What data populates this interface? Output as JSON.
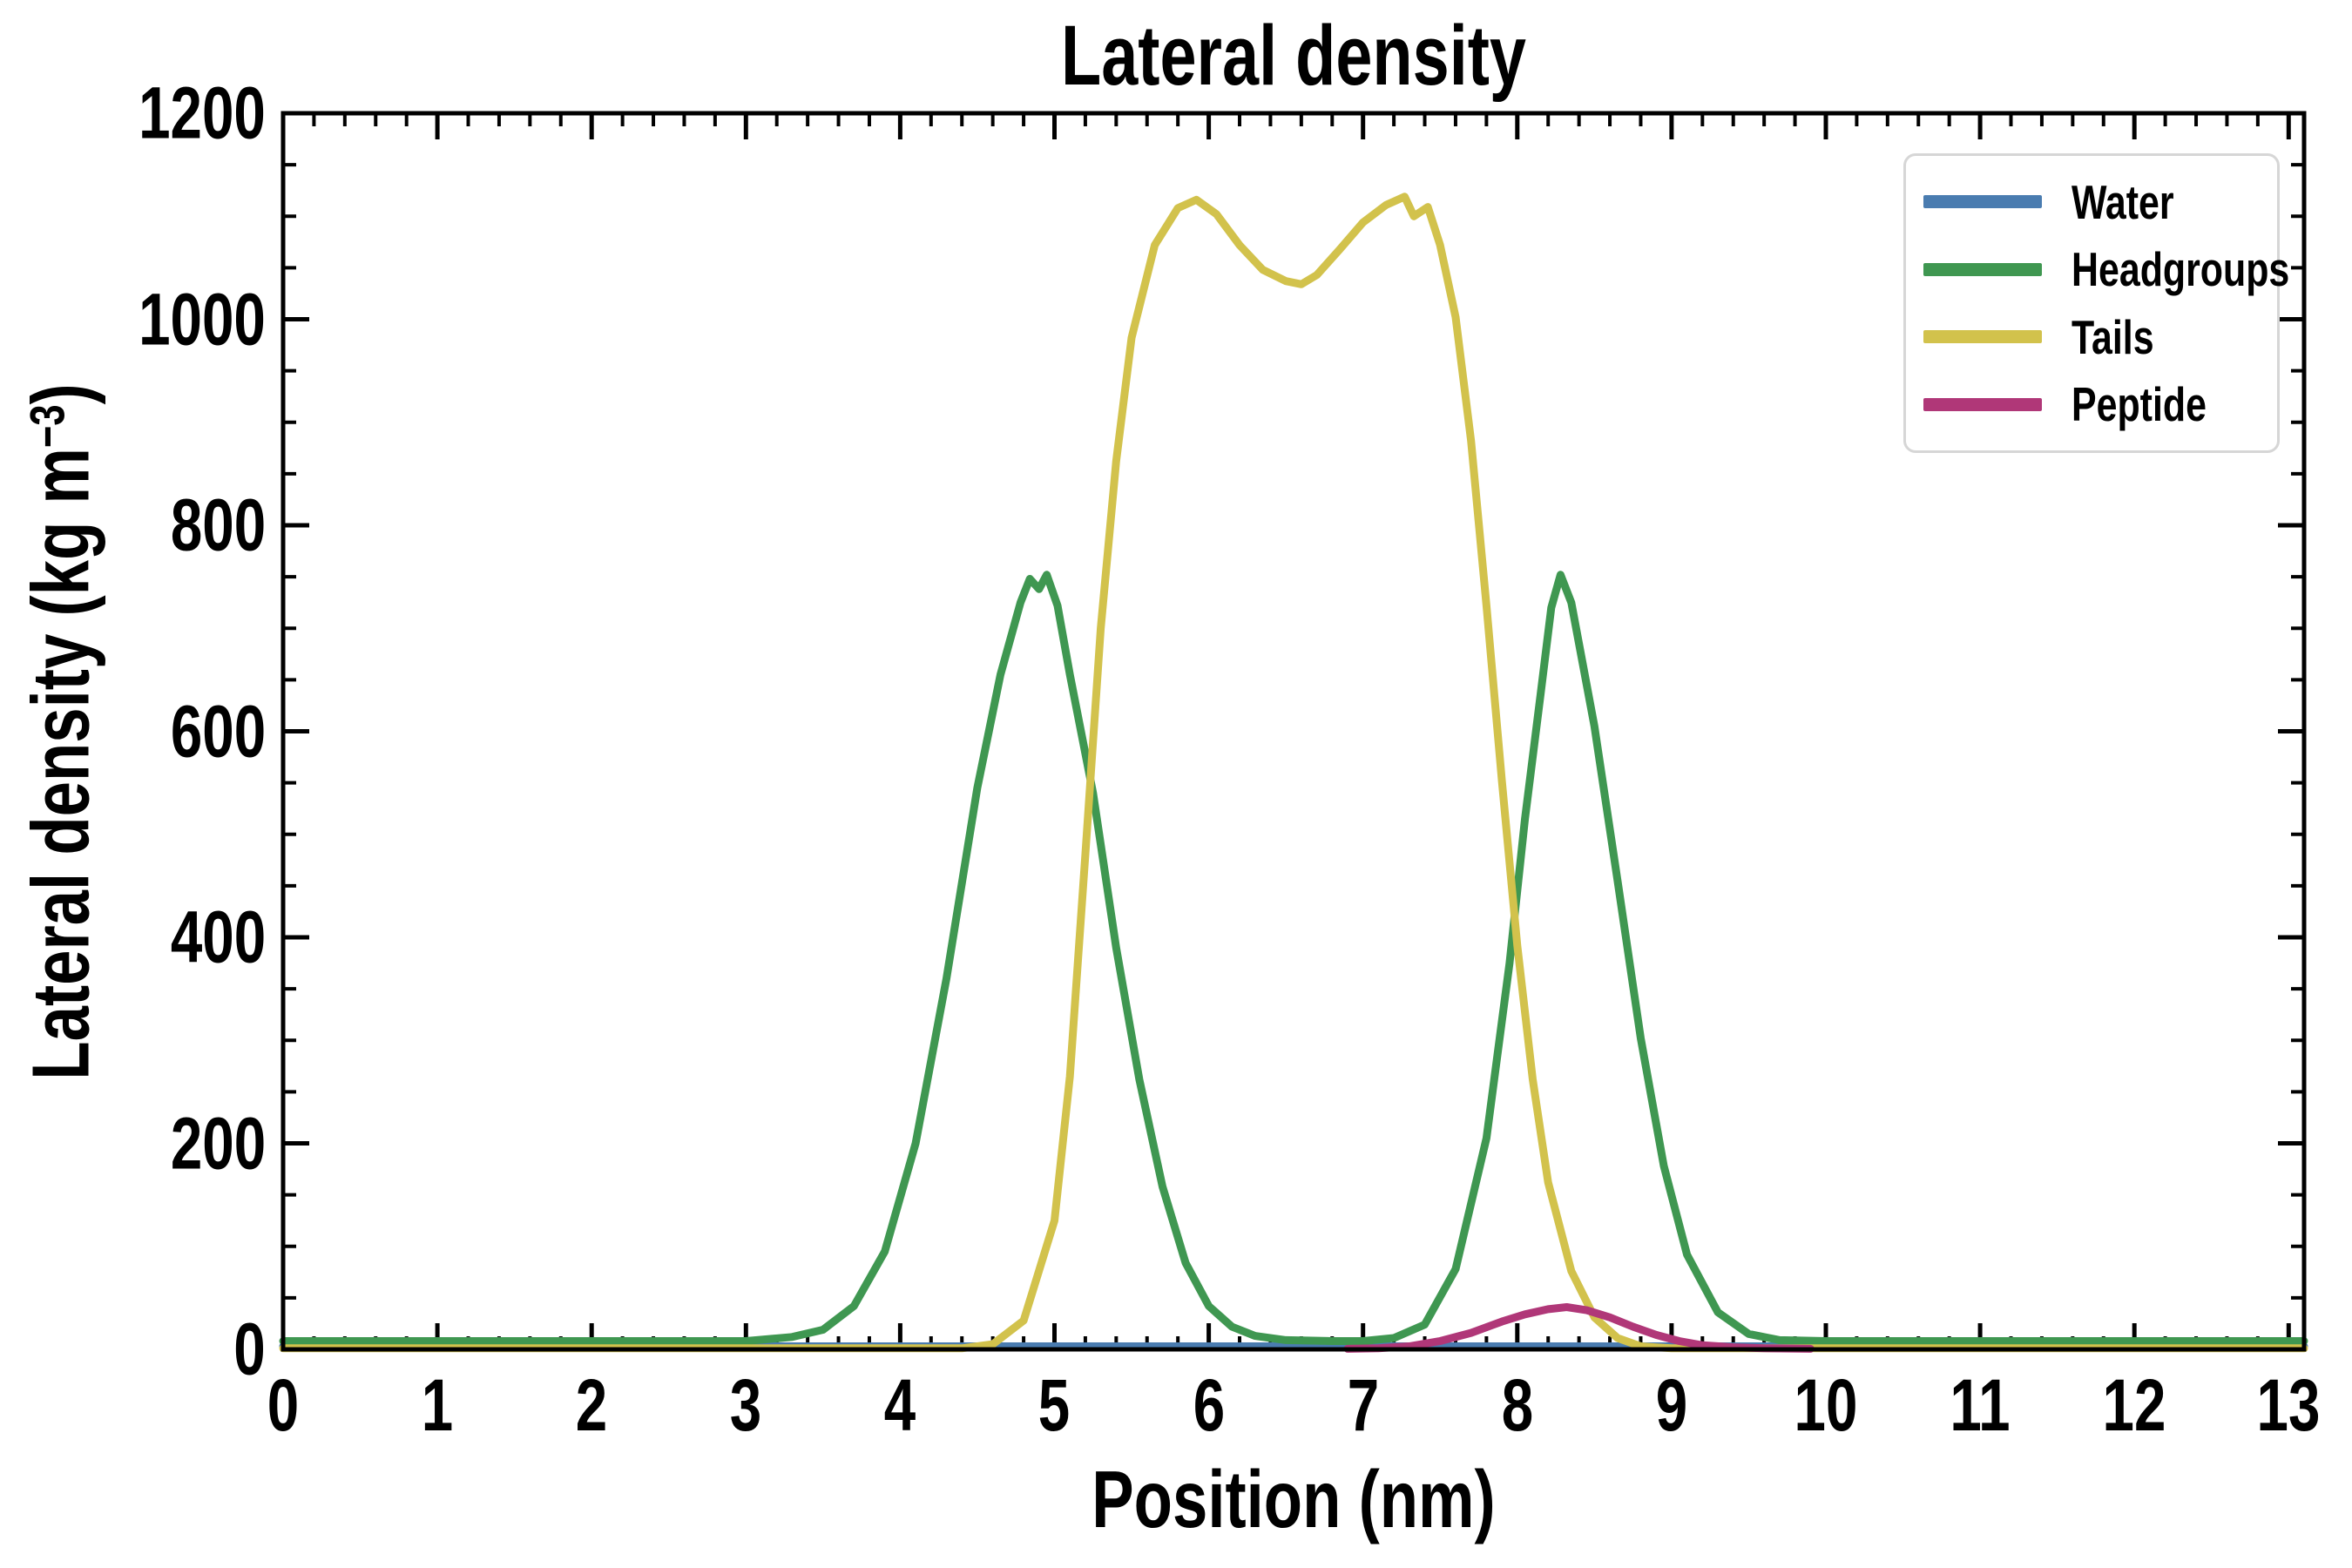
{
  "title": "Lateral density",
  "axes": {
    "xlabel": "Position (nm)",
    "ylabel_pre": "Lateral density (kg m",
    "ylabel_sup": "−3",
    "ylabel_post": ")",
    "xlim": [
      0,
      13.1
    ],
    "ylim": [
      0,
      1200
    ],
    "xticks": [
      0,
      1,
      2,
      3,
      4,
      5,
      6,
      7,
      8,
      9,
      10,
      11,
      12,
      13
    ],
    "yticks": [
      0,
      200,
      400,
      600,
      800,
      1000,
      1200
    ],
    "x_minor_step": 0.2,
    "y_minor_step": 50
  },
  "chart_data": {
    "type": "line",
    "title": "Lateral density",
    "xlabel": "Position (nm)",
    "ylabel": "Lateral density (kg m⁻³)",
    "xlim": [
      0,
      13.1
    ],
    "ylim": [
      0,
      1200
    ],
    "grid": false,
    "legend_position": "upper right",
    "series": [
      {
        "name": "Water",
        "color": "#4a7cb0",
        "peak_summary": "flat at ~0 kg m-3 across 0-13 nm",
        "points": [
          [
            0,
            3
          ],
          [
            13.1,
            3
          ]
        ]
      },
      {
        "name": "Headgroups",
        "color": "#3f9751",
        "peak_summary": "two peaks of ~750 kg m-3 at ~4.9 nm and ~8.3 nm",
        "points": [
          [
            0,
            8
          ],
          [
            3.0,
            8
          ],
          [
            3.3,
            12
          ],
          [
            3.5,
            19
          ],
          [
            3.7,
            42
          ],
          [
            3.9,
            95
          ],
          [
            4.1,
            200
          ],
          [
            4.3,
            360
          ],
          [
            4.5,
            545
          ],
          [
            4.65,
            655
          ],
          [
            4.78,
            725
          ],
          [
            4.84,
            748
          ],
          [
            4.9,
            738
          ],
          [
            4.95,
            752
          ],
          [
            5.02,
            722
          ],
          [
            5.1,
            655
          ],
          [
            5.25,
            540
          ],
          [
            5.4,
            390
          ],
          [
            5.55,
            262
          ],
          [
            5.7,
            158
          ],
          [
            5.85,
            84
          ],
          [
            6.0,
            42
          ],
          [
            6.15,
            22
          ],
          [
            6.3,
            13
          ],
          [
            6.5,
            9
          ],
          [
            6.8,
            8
          ],
          [
            7.0,
            8
          ],
          [
            7.2,
            11
          ],
          [
            7.4,
            24
          ],
          [
            7.6,
            78
          ],
          [
            7.8,
            205
          ],
          [
            7.95,
            375
          ],
          [
            8.05,
            515
          ],
          [
            8.15,
            635
          ],
          [
            8.22,
            720
          ],
          [
            8.28,
            752
          ],
          [
            8.35,
            725
          ],
          [
            8.5,
            605
          ],
          [
            8.65,
            455
          ],
          [
            8.8,
            302
          ],
          [
            8.95,
            178
          ],
          [
            9.1,
            92
          ],
          [
            9.3,
            36
          ],
          [
            9.5,
            15
          ],
          [
            9.7,
            9
          ],
          [
            10.0,
            8
          ],
          [
            13.1,
            8
          ]
        ]
      },
      {
        "name": "Tails",
        "color": "#d2c24c",
        "peak_summary": "broad double hump ~1115 kg m-3 at ~5.9 and ~7.3 nm, dip ~1035 at ~6.6 nm",
        "points": [
          [
            0,
            1
          ],
          [
            4.4,
            1
          ],
          [
            4.6,
            5
          ],
          [
            4.8,
            28
          ],
          [
            5.0,
            125
          ],
          [
            5.1,
            265
          ],
          [
            5.2,
            480
          ],
          [
            5.3,
            700
          ],
          [
            5.4,
            862
          ],
          [
            5.5,
            982
          ],
          [
            5.65,
            1072
          ],
          [
            5.8,
            1108
          ],
          [
            5.92,
            1116
          ],
          [
            6.05,
            1102
          ],
          [
            6.2,
            1072
          ],
          [
            6.35,
            1048
          ],
          [
            6.5,
            1037
          ],
          [
            6.6,
            1034
          ],
          [
            6.7,
            1043
          ],
          [
            6.85,
            1068
          ],
          [
            7.0,
            1094
          ],
          [
            7.15,
            1111
          ],
          [
            7.27,
            1119
          ],
          [
            7.33,
            1100
          ],
          [
            7.42,
            1109
          ],
          [
            7.5,
            1072
          ],
          [
            7.6,
            1002
          ],
          [
            7.7,
            882
          ],
          [
            7.8,
            722
          ],
          [
            7.9,
            552
          ],
          [
            8.0,
            392
          ],
          [
            8.1,
            262
          ],
          [
            8.2,
            162
          ],
          [
            8.35,
            76
          ],
          [
            8.5,
            31
          ],
          [
            8.65,
            11
          ],
          [
            8.8,
            3
          ],
          [
            9.0,
            1
          ],
          [
            13.1,
            1
          ]
        ]
      },
      {
        "name": "Peptide",
        "color": "#b03778",
        "peak_summary": "small peak ~40 kg m-3 at ~8.3 nm",
        "points": [
          [
            6.9,
            0.5
          ],
          [
            7.1,
            1
          ],
          [
            7.3,
            3
          ],
          [
            7.5,
            8
          ],
          [
            7.7,
            16
          ],
          [
            7.9,
            27
          ],
          [
            8.05,
            34
          ],
          [
            8.2,
            39
          ],
          [
            8.32,
            41
          ],
          [
            8.45,
            38
          ],
          [
            8.6,
            31
          ],
          [
            8.75,
            22
          ],
          [
            8.9,
            14
          ],
          [
            9.05,
            8
          ],
          [
            9.2,
            4
          ],
          [
            9.4,
            2
          ],
          [
            9.6,
            1
          ],
          [
            9.9,
            0.5
          ]
        ]
      }
    ]
  }
}
